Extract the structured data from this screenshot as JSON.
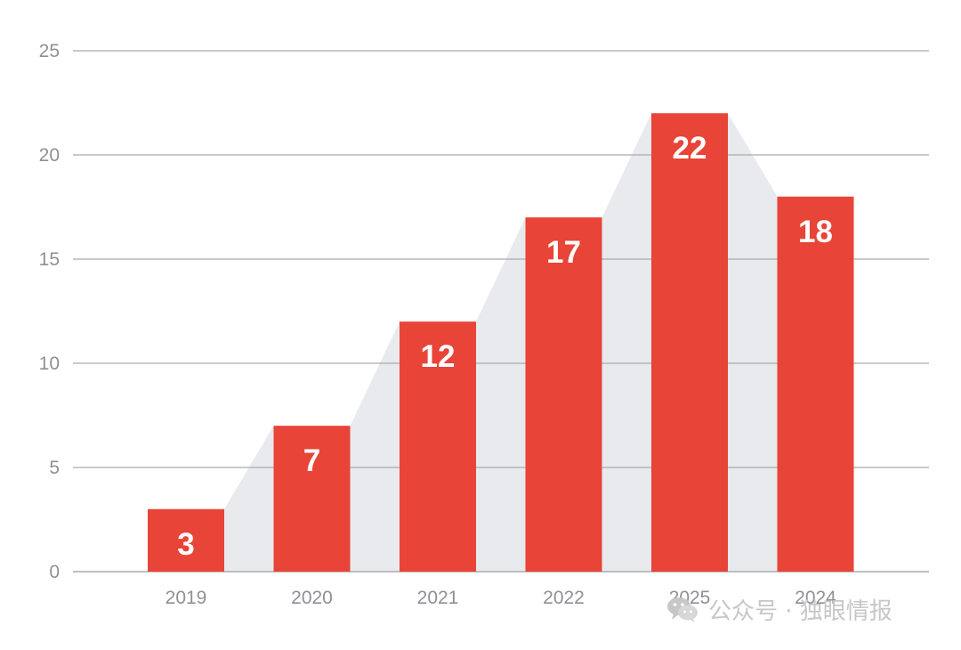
{
  "chart_data": {
    "type": "bar",
    "categories": [
      "2019",
      "2020",
      "2021",
      "2022",
      "2025",
      "2024"
    ],
    "values": [
      3,
      7,
      12,
      17,
      22,
      18
    ],
    "data_labels": [
      "3",
      "7",
      "12",
      "17",
      "22",
      "18"
    ],
    "title": "",
    "xlabel": "",
    "ylabel": "",
    "ylim": [
      0,
      25
    ],
    "yticks": [
      "0",
      "5",
      "10",
      "15",
      "20",
      "25"
    ],
    "grid": true,
    "legend": "none",
    "background_area": "light gray area following bar tops"
  },
  "colors": {
    "bar": "#e84437",
    "area": "#e9eaee",
    "grid": "#a9abb1",
    "tick_label": "#8f9096",
    "data_label": "#ffffff",
    "watermark": "#c7c7c7"
  },
  "watermark": {
    "icon": "wechat-icon",
    "text": "公众号 · 独眼情报"
  }
}
